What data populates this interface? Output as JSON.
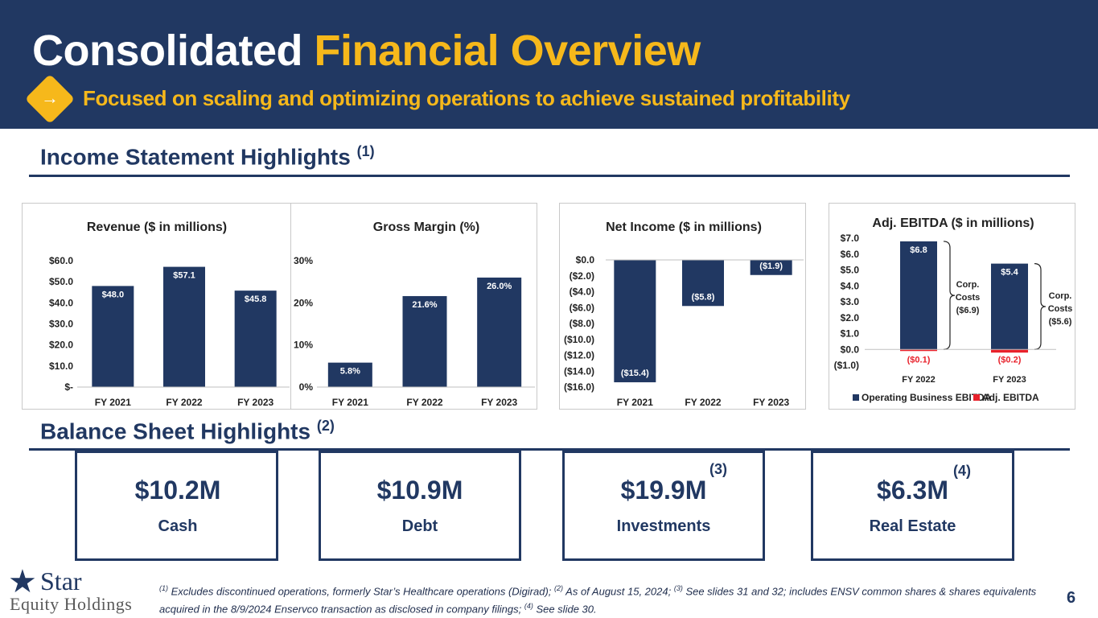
{
  "header": {
    "title_main": "Consolidated",
    "title_accent": "Financial Overview",
    "arrow_glyph": "→",
    "subtitle": "Focused on scaling and optimizing operations to achieve sustained profitability"
  },
  "income_section": {
    "title": "Income Statement Highlights",
    "note": "(1)"
  },
  "balance_section": {
    "title": "Balance Sheet Highlights",
    "note": "(2)"
  },
  "chart_data": [
    {
      "type": "bar",
      "title": "Revenue  ($ in millions)",
      "categories": [
        "FY 2021",
        "FY 2022",
        "FY 2023"
      ],
      "values": [
        48.0,
        57.1,
        45.8
      ],
      "value_labels": [
        "$48.0",
        "$57.1",
        "$45.8"
      ],
      "ylim": [
        0,
        60
      ],
      "yticks": [
        0,
        10,
        20,
        30,
        40,
        50,
        60
      ],
      "ytick_labels": [
        "$-",
        "$10.0",
        "$20.0",
        "$30.0",
        "$40.0",
        "$50.0",
        "$60.0"
      ],
      "grid": false
    },
    {
      "type": "bar",
      "title": "Gross Margin (%)",
      "categories": [
        "FY 2021",
        "FY 2022",
        "FY 2023"
      ],
      "values": [
        5.8,
        21.6,
        26.0
      ],
      "value_labels": [
        "5.8%",
        "21.6%",
        "26.0%"
      ],
      "ylim": [
        0,
        30
      ],
      "yticks": [
        0,
        10,
        20,
        30
      ],
      "ytick_labels": [
        "0%",
        "10%",
        "20%",
        "30%"
      ],
      "grid": false
    },
    {
      "type": "bar",
      "title": "Net Income ($ in millions)",
      "categories": [
        "FY 2021",
        "FY 2022",
        "FY 2023"
      ],
      "values": [
        -15.4,
        -5.8,
        -1.9
      ],
      "value_labels": [
        "($15.4)",
        "($5.8)",
        "($1.9)"
      ],
      "ylim": [
        -16,
        0
      ],
      "yticks": [
        0,
        -2,
        -4,
        -6,
        -8,
        -10,
        -12,
        -14,
        -16
      ],
      "ytick_labels": [
        "$0.0",
        "($2.0)",
        "($4.0)",
        "($6.0)",
        "($8.0)",
        "($10.0)",
        "($12.0)",
        "($14.0)",
        "($16.0)"
      ],
      "grid": false
    },
    {
      "type": "bar",
      "title": "Adj. EBITDA ($ in millions)",
      "categories": [
        "FY 2022",
        "FY 2023"
      ],
      "series": [
        {
          "name": "Operating Business EBITDA",
          "values": [
            6.8,
            5.4
          ],
          "labels": [
            "$6.8",
            "$5.4"
          ],
          "color": "#213862"
        },
        {
          "name": "Adj. EBITDA",
          "values": [
            -0.1,
            -0.2
          ],
          "labels": [
            "($0.1)",
            "($0.2)"
          ],
          "color": "#e8212b"
        }
      ],
      "annotations": [
        {
          "category": "FY 2022",
          "lines": [
            "Corp.",
            "Costs",
            "($6.9)"
          ]
        },
        {
          "category": "FY 2023",
          "lines": [
            "Corp.",
            "Costs",
            "($5.6)"
          ]
        }
      ],
      "ylim": [
        -1,
        7
      ],
      "yticks": [
        7,
        6,
        5,
        4,
        3,
        2,
        1,
        0,
        -1
      ],
      "ytick_labels": [
        "$7.0",
        "$6.0",
        "$5.0",
        "$4.0",
        "$3.0",
        "$2.0",
        "$1.0",
        "$0.0",
        "($1.0)"
      ],
      "legend_position": "bottom",
      "grid": false
    }
  ],
  "balance": [
    {
      "value": "$10.2M",
      "label": "Cash",
      "note": ""
    },
    {
      "value": "$10.9M",
      "label": "Debt",
      "note": ""
    },
    {
      "value": "$19.9M",
      "label": "Investments",
      "note": "(3)"
    },
    {
      "value": "$6.3M",
      "label": "Real Estate",
      "note": "(4)"
    }
  ],
  "footer": {
    "logo_star": "★",
    "logo_name": "Star",
    "logo_sub": "Equity Holdings",
    "footnote": {
      "n1": "(1)",
      "t1": " Excludes discontinued operations, formerly Star’s Healthcare operations (Digirad); ",
      "n2": "(2)",
      "t2": " As of August 15, 2024; ",
      "n3": "(3)",
      "t3": " See slides 31 and 32; includes ENSV common shares & shares equivalents acquired in the 8/9/2024 Enservco transaction as disclosed in company filings; ",
      "n4": "(4)",
      "t4": " See slide 30."
    },
    "page_number": "6"
  },
  "colors": {
    "navy": "#213862",
    "gold": "#f6b81b",
    "red": "#e8212b"
  }
}
